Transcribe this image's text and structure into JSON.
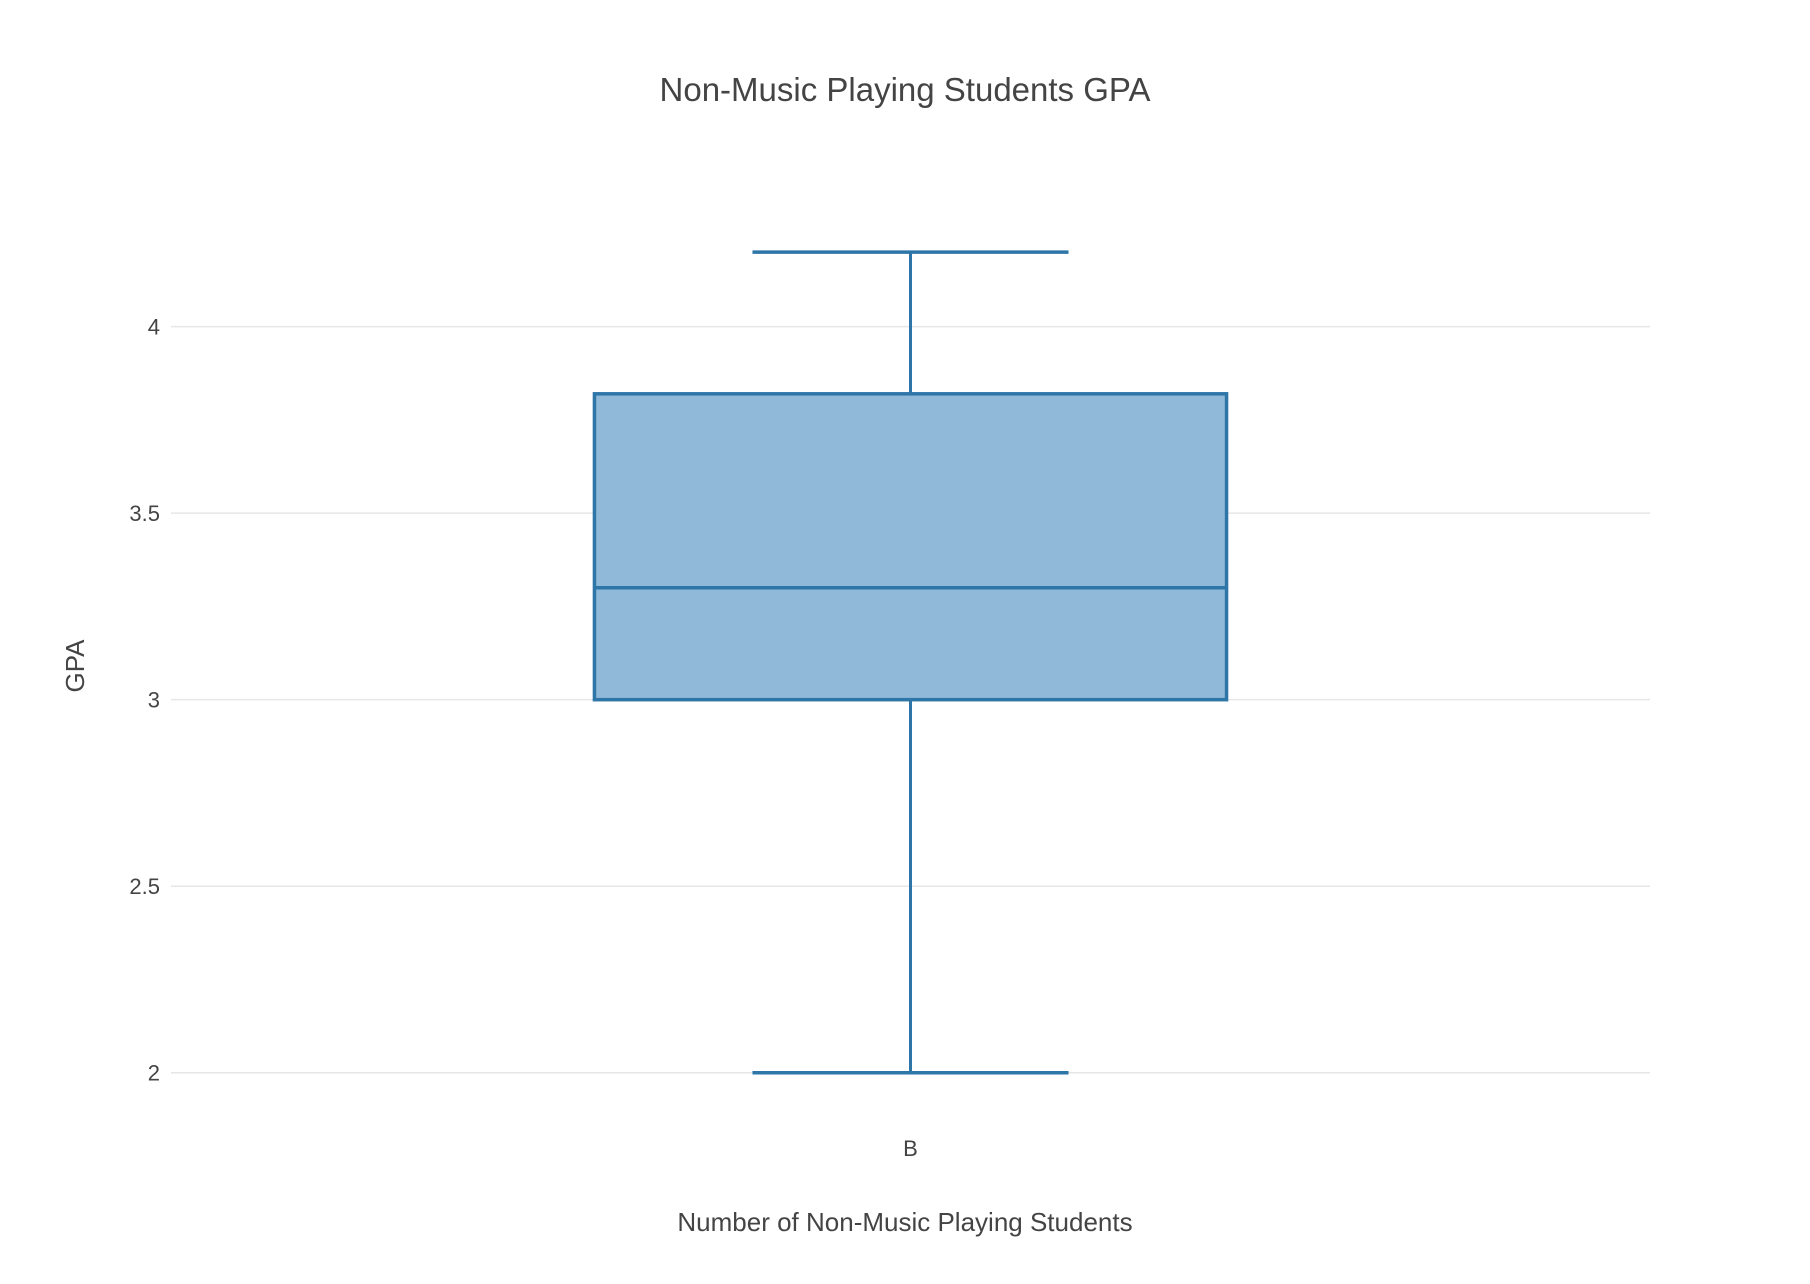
{
  "chart_data": {
    "type": "box",
    "title": "Non-Music Playing Students GPA",
    "xlabel": "Number of Non-Music Playing Students",
    "ylabel": "GPA",
    "categories": [
      "B"
    ],
    "series": [
      {
        "category": "B",
        "min": 2.0,
        "q1": 3.0,
        "median": 3.3,
        "q3": 3.82,
        "max": 4.2
      }
    ],
    "ylim": [
      1.9,
      4.42
    ],
    "yticks": [
      2,
      2.5,
      3,
      3.5,
      4
    ],
    "ytick_labels": [
      "2",
      "2.5",
      "3",
      "3.5",
      "4"
    ],
    "grid": true,
    "colors": {
      "line": "#2e75a8",
      "fill": "#90b8d8"
    }
  }
}
